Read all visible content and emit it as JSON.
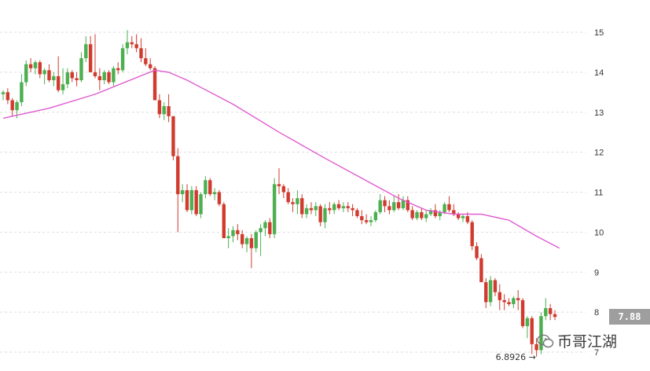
{
  "chart_data": {
    "type": "candlestick",
    "ylim": [
      6.8,
      15.3
    ],
    "yticks": [
      7,
      8,
      9,
      10,
      11,
      12,
      13,
      14,
      15
    ],
    "grid": true,
    "current_price": "7.88",
    "low_annotation": "6.8926 →",
    "colors": {
      "up": "#4caf50",
      "down": "#d13b2f",
      "ma": "#e05ad0",
      "grid": "#dddddd"
    },
    "candles": [
      [
        13.45,
        13.55,
        13.3,
        13.5
      ],
      [
        13.5,
        13.6,
        13.2,
        13.3
      ],
      [
        13.3,
        13.35,
        12.9,
        13.05
      ],
      [
        13.05,
        13.3,
        12.85,
        13.25
      ],
      [
        13.25,
        13.95,
        13.15,
        13.75
      ],
      [
        13.75,
        14.3,
        13.65,
        14.2
      ],
      [
        14.2,
        14.35,
        14.0,
        14.1
      ],
      [
        14.1,
        14.3,
        13.95,
        14.25
      ],
      [
        14.25,
        14.3,
        13.85,
        13.95
      ],
      [
        13.95,
        14.1,
        13.7,
        14.05
      ],
      [
        14.05,
        14.2,
        13.75,
        13.8
      ],
      [
        13.8,
        14.0,
        13.65,
        13.9
      ],
      [
        13.9,
        14.4,
        13.5,
        13.55
      ],
      [
        13.55,
        14.1,
        13.45,
        13.7
      ],
      [
        13.7,
        14.1,
        13.6,
        14.0
      ],
      [
        14.0,
        14.05,
        13.75,
        13.85
      ],
      [
        13.85,
        14.0,
        13.65,
        13.8
      ],
      [
        13.8,
        14.5,
        13.75,
        14.35
      ],
      [
        14.35,
        14.9,
        14.25,
        14.7
      ],
      [
        14.7,
        14.9,
        14.05,
        14.0
      ],
      [
        14.0,
        14.95,
        13.85,
        13.9
      ],
      [
        13.9,
        14.1,
        13.55,
        13.8
      ],
      [
        13.8,
        14.05,
        13.7,
        14.0
      ],
      [
        14.0,
        14.05,
        13.7,
        13.75
      ],
      [
        13.75,
        14.15,
        13.65,
        14.1
      ],
      [
        14.1,
        14.25,
        13.95,
        14.05
      ],
      [
        14.05,
        14.7,
        14.0,
        14.6
      ],
      [
        14.6,
        15.05,
        14.45,
        14.75
      ],
      [
        14.75,
        14.9,
        14.6,
        14.7
      ],
      [
        14.7,
        14.95,
        14.5,
        14.6
      ],
      [
        14.6,
        14.85,
        14.25,
        14.35
      ],
      [
        14.35,
        14.6,
        14.15,
        14.2
      ],
      [
        14.2,
        14.35,
        14.05,
        14.1
      ],
      [
        14.1,
        14.15,
        13.35,
        13.3
      ],
      [
        13.3,
        13.45,
        12.85,
        12.95
      ],
      [
        12.95,
        13.25,
        12.8,
        13.15
      ],
      [
        13.15,
        13.45,
        12.75,
        12.9
      ],
      [
        12.9,
        12.9,
        11.8,
        11.9
      ],
      [
        11.9,
        12.1,
        10.0,
        10.95
      ],
      [
        10.95,
        11.2,
        10.75,
        11.05
      ],
      [
        11.05,
        11.2,
        10.5,
        10.55
      ],
      [
        10.55,
        11.15,
        10.45,
        11.05
      ],
      [
        11.05,
        11.15,
        10.4,
        10.45
      ],
      [
        10.45,
        11.0,
        10.35,
        10.95
      ],
      [
        10.95,
        11.4,
        10.85,
        11.3
      ],
      [
        11.3,
        11.35,
        10.9,
        10.95
      ],
      [
        10.95,
        11.1,
        10.8,
        11.0
      ],
      [
        11.0,
        11.05,
        10.65,
        10.7
      ],
      [
        10.7,
        10.75,
        9.9,
        9.85
      ],
      [
        9.85,
        10.1,
        9.6,
        9.9
      ],
      [
        9.9,
        10.15,
        9.75,
        10.05
      ],
      [
        10.05,
        10.2,
        9.8,
        9.95
      ],
      [
        9.95,
        10.05,
        9.6,
        9.7
      ],
      [
        9.7,
        9.9,
        9.5,
        9.85
      ],
      [
        9.85,
        9.95,
        9.1,
        9.6
      ],
      [
        9.6,
        10.05,
        9.5,
        10.0
      ],
      [
        10.0,
        10.2,
        9.4,
        10.1
      ],
      [
        10.1,
        10.3,
        9.9,
        10.25
      ],
      [
        10.25,
        10.35,
        9.85,
        9.95
      ],
      [
        9.95,
        11.35,
        9.85,
        11.2
      ],
      [
        11.2,
        11.6,
        10.95,
        11.15
      ],
      [
        11.15,
        11.2,
        10.85,
        11.0
      ],
      [
        11.0,
        11.1,
        10.7,
        10.75
      ],
      [
        10.75,
        10.85,
        10.5,
        10.7
      ],
      [
        10.7,
        11.05,
        10.45,
        10.85
      ],
      [
        10.85,
        10.95,
        10.35,
        10.45
      ],
      [
        10.45,
        10.7,
        10.35,
        10.6
      ],
      [
        10.6,
        10.75,
        10.45,
        10.55
      ],
      [
        10.55,
        10.75,
        10.4,
        10.65
      ],
      [
        10.65,
        10.7,
        10.15,
        10.25
      ],
      [
        10.25,
        10.7,
        10.1,
        10.6
      ],
      [
        10.6,
        10.75,
        10.45,
        10.55
      ],
      [
        10.55,
        10.75,
        10.45,
        10.7
      ],
      [
        10.7,
        10.8,
        10.55,
        10.6
      ],
      [
        10.6,
        10.75,
        10.5,
        10.65
      ],
      [
        10.65,
        10.75,
        10.5,
        10.6
      ],
      [
        10.6,
        10.7,
        10.4,
        10.55
      ],
      [
        10.55,
        10.6,
        10.35,
        10.4
      ],
      [
        10.4,
        10.55,
        10.2,
        10.3
      ],
      [
        10.3,
        10.45,
        10.2,
        10.25
      ],
      [
        10.25,
        10.4,
        10.15,
        10.3
      ],
      [
        10.3,
        10.55,
        10.25,
        10.5
      ],
      [
        10.5,
        10.95,
        10.45,
        10.8
      ],
      [
        10.8,
        10.9,
        10.5,
        10.65
      ],
      [
        10.65,
        10.8,
        10.45,
        10.55
      ],
      [
        10.55,
        10.9,
        10.5,
        10.75
      ],
      [
        10.75,
        10.95,
        10.55,
        10.6
      ],
      [
        10.6,
        10.9,
        10.55,
        10.8
      ],
      [
        10.8,
        10.9,
        10.5,
        10.55
      ],
      [
        10.55,
        10.65,
        10.3,
        10.35
      ],
      [
        10.35,
        10.55,
        10.3,
        10.5
      ],
      [
        10.5,
        10.6,
        10.3,
        10.35
      ],
      [
        10.35,
        10.55,
        10.25,
        10.45
      ],
      [
        10.45,
        10.6,
        10.4,
        10.55
      ],
      [
        10.55,
        10.7,
        10.35,
        10.4
      ],
      [
        10.4,
        10.55,
        10.3,
        10.5
      ],
      [
        10.5,
        10.75,
        10.45,
        10.7
      ],
      [
        10.7,
        10.9,
        10.5,
        10.55
      ],
      [
        10.55,
        10.7,
        10.4,
        10.45
      ],
      [
        10.45,
        10.5,
        10.3,
        10.35
      ],
      [
        10.35,
        10.45,
        10.25,
        10.4
      ],
      [
        10.4,
        10.5,
        10.2,
        10.25
      ],
      [
        10.25,
        10.3,
        9.55,
        9.65
      ],
      [
        9.65,
        9.75,
        9.3,
        9.35
      ],
      [
        9.35,
        9.45,
        8.75,
        8.75
      ],
      [
        8.75,
        8.85,
        8.1,
        8.25
      ],
      [
        8.25,
        8.9,
        8.15,
        8.8
      ],
      [
        8.8,
        8.85,
        8.4,
        8.5
      ],
      [
        8.5,
        8.7,
        8.05,
        8.3
      ],
      [
        8.3,
        8.45,
        8.05,
        8.25
      ],
      [
        8.25,
        8.35,
        8.15,
        8.2
      ],
      [
        8.2,
        8.4,
        8.1,
        8.35
      ],
      [
        8.35,
        8.55,
        8.05,
        8.3
      ],
      [
        8.3,
        8.35,
        7.6,
        7.65
      ],
      [
        7.65,
        7.9,
        7.35,
        7.85
      ],
      [
        7.85,
        7.9,
        6.95,
        7.2
      ],
      [
        7.2,
        7.35,
        6.89,
        7.05
      ],
      [
        7.05,
        8.0,
        6.95,
        7.9
      ],
      [
        7.9,
        8.35,
        7.8,
        8.1
      ],
      [
        8.1,
        8.2,
        7.8,
        7.95
      ],
      [
        7.95,
        8.05,
        7.8,
        7.88
      ]
    ],
    "ma": [
      [
        0,
        12.85
      ],
      [
        10,
        13.1
      ],
      [
        20,
        13.45
      ],
      [
        33,
        14.05
      ],
      [
        36,
        14.0
      ],
      [
        40,
        13.8
      ],
      [
        50,
        13.2
      ],
      [
        60,
        12.5
      ],
      [
        70,
        11.85
      ],
      [
        78,
        11.35
      ],
      [
        86,
        10.85
      ],
      [
        92,
        10.55
      ],
      [
        98,
        10.45
      ],
      [
        104,
        10.45
      ],
      [
        110,
        10.3
      ],
      [
        116,
        9.9
      ],
      [
        121,
        9.6
      ]
    ]
  },
  "watermark": {
    "text": "币哥江湖",
    "icon": "wechat-icon"
  }
}
